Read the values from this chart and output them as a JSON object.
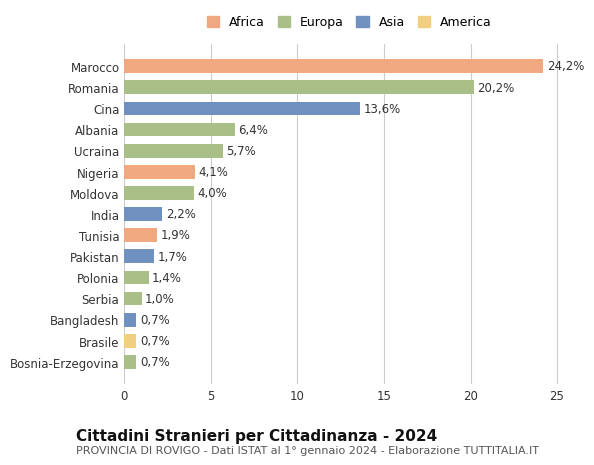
{
  "countries": [
    "Bosnia-Erzegovina",
    "Brasile",
    "Bangladesh",
    "Serbia",
    "Polonia",
    "Pakistan",
    "Tunisia",
    "India",
    "Moldova",
    "Nigeria",
    "Ucraina",
    "Albania",
    "Cina",
    "Romania",
    "Marocco"
  ],
  "values": [
    0.7,
    0.7,
    0.7,
    1.0,
    1.4,
    1.7,
    1.9,
    2.2,
    4.0,
    4.1,
    5.7,
    6.4,
    13.6,
    20.2,
    24.2
  ],
  "labels": [
    "0,7%",
    "0,7%",
    "0,7%",
    "1,0%",
    "1,4%",
    "1,7%",
    "1,9%",
    "2,2%",
    "4,0%",
    "4,1%",
    "5,7%",
    "6,4%",
    "13,6%",
    "20,2%",
    "24,2%"
  ],
  "continents": [
    "Europa",
    "America",
    "Asia",
    "Europa",
    "Europa",
    "Asia",
    "Africa",
    "Asia",
    "Europa",
    "Africa",
    "Europa",
    "Europa",
    "Asia",
    "Europa",
    "Africa"
  ],
  "continent_colors": {
    "Africa": "#F0A880",
    "Europa": "#AABF88",
    "Asia": "#7090C0",
    "America": "#F0D080"
  },
  "legend_order": [
    "Africa",
    "Europa",
    "Asia",
    "America"
  ],
  "title": "Cittadini Stranieri per Cittadinanza - 2024",
  "subtitle": "PROVINCIA DI ROVIGO - Dati ISTAT al 1° gennaio 2024 - Elaborazione TUTTITALIA.IT",
  "xlim": [
    0,
    26
  ],
  "xticks": [
    0,
    5,
    10,
    15,
    20,
    25
  ],
  "background_color": "#ffffff",
  "bar_height": 0.65,
  "label_fontsize": 8.5,
  "tick_fontsize": 8.5,
  "title_fontsize": 11,
  "subtitle_fontsize": 8,
  "legend_fontsize": 9
}
